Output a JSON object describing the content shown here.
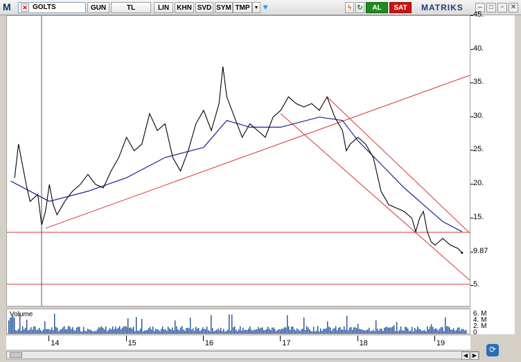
{
  "toolbar": {
    "logo": "M",
    "symbol": "GOLTS",
    "buttons": [
      "GUN",
      "TL",
      "LIN",
      "KHN",
      "SVD",
      "SYM",
      "TMP"
    ],
    "buy_label": "AL",
    "sell_label": "SAT",
    "brand": "MATRIKS"
  },
  "chart_data": {
    "type": "line",
    "y_ticks": [
      "45.",
      "40.",
      "35.",
      "30.",
      "25.",
      "20.",
      "15.",
      "9.87",
      "5."
    ],
    "x_ticks": [
      "14",
      "15",
      "16",
      "17",
      "18",
      "19"
    ],
    "last_value": 9.87,
    "ylim": [
      2,
      45
    ],
    "horizontal_levels": [
      12.9,
      5.2
    ],
    "price": [
      [
        13.55,
        21
      ],
      [
        13.6,
        26
      ],
      [
        13.65,
        23
      ],
      [
        13.7,
        20
      ],
      [
        13.75,
        17.5
      ],
      [
        13.8,
        18
      ],
      [
        13.85,
        18.5
      ],
      [
        13.9,
        14
      ],
      [
        13.95,
        16
      ],
      [
        14.0,
        20
      ],
      [
        14.05,
        17
      ],
      [
        14.1,
        15.5
      ],
      [
        14.15,
        16.5
      ],
      [
        14.2,
        17.5
      ],
      [
        14.3,
        19
      ],
      [
        14.4,
        20
      ],
      [
        14.5,
        21.5
      ],
      [
        14.6,
        20
      ],
      [
        14.7,
        19.5
      ],
      [
        14.8,
        22
      ],
      [
        14.9,
        24
      ],
      [
        15.0,
        27
      ],
      [
        15.1,
        25
      ],
      [
        15.2,
        26
      ],
      [
        15.3,
        30.5
      ],
      [
        15.4,
        28
      ],
      [
        15.5,
        29
      ],
      [
        15.6,
        24
      ],
      [
        15.7,
        22
      ],
      [
        15.8,
        25
      ],
      [
        15.9,
        29
      ],
      [
        16.0,
        31
      ],
      [
        16.1,
        28
      ],
      [
        16.2,
        32
      ],
      [
        16.25,
        37.5
      ],
      [
        16.3,
        33
      ],
      [
        16.4,
        30
      ],
      [
        16.5,
        27
      ],
      [
        16.6,
        29
      ],
      [
        16.7,
        28
      ],
      [
        16.8,
        27
      ],
      [
        16.9,
        30
      ],
      [
        17.0,
        31
      ],
      [
        17.1,
        33
      ],
      [
        17.2,
        32
      ],
      [
        17.3,
        31.5
      ],
      [
        17.4,
        32
      ],
      [
        17.5,
        31
      ],
      [
        17.6,
        33
      ],
      [
        17.7,
        30
      ],
      [
        17.8,
        28
      ],
      [
        17.85,
        25
      ],
      [
        17.9,
        26
      ],
      [
        18.0,
        27
      ],
      [
        18.1,
        26
      ],
      [
        18.2,
        24
      ],
      [
        18.3,
        19
      ],
      [
        18.4,
        17
      ],
      [
        18.5,
        16.5
      ],
      [
        18.6,
        16
      ],
      [
        18.7,
        15
      ],
      [
        18.75,
        13
      ],
      [
        18.8,
        15
      ],
      [
        18.85,
        16
      ],
      [
        18.9,
        13
      ],
      [
        18.95,
        11.5
      ],
      [
        19.0,
        11
      ],
      [
        19.1,
        12
      ],
      [
        19.2,
        11
      ],
      [
        19.3,
        10.5
      ],
      [
        19.35,
        9.87
      ]
    ],
    "moving_average": [
      [
        13.5,
        20.5
      ],
      [
        14.0,
        17.5
      ],
      [
        14.5,
        19
      ],
      [
        15.0,
        21
      ],
      [
        15.5,
        24
      ],
      [
        16.0,
        25.5
      ],
      [
        16.3,
        29.5
      ],
      [
        16.6,
        28.5
      ],
      [
        17.0,
        28.5
      ],
      [
        17.5,
        30
      ],
      [
        17.8,
        29.5
      ],
      [
        18.0,
        26.5
      ],
      [
        18.3,
        23
      ],
      [
        18.6,
        19.5
      ],
      [
        18.9,
        16.5
      ],
      [
        19.1,
        14.5
      ],
      [
        19.35,
        13
      ]
    ],
    "trendlines": [
      [
        [
          13.95,
          13.5
        ],
        [
          19.45,
          36.2
        ]
      ],
      [
        [
          17.0,
          30.5
        ],
        [
          19.45,
          5.8
        ]
      ],
      [
        [
          17.6,
          33
        ],
        [
          19.45,
          12.8
        ]
      ]
    ],
    "volume_label": "Volume",
    "volume_ticks": [
      "6. M",
      "4. M",
      "2. M",
      "0"
    ]
  }
}
